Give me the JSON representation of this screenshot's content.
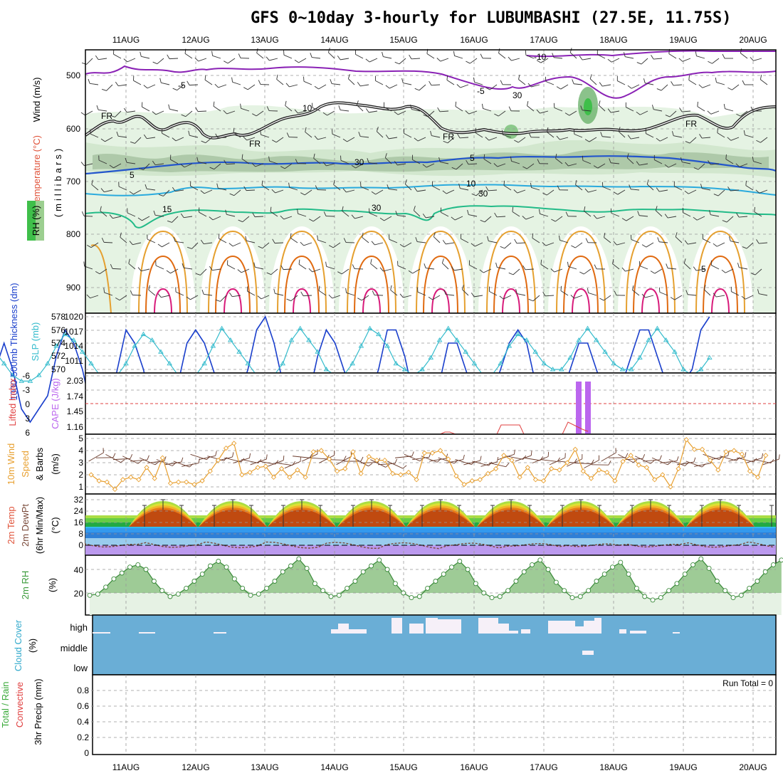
{
  "title": "GFS 0~10day 3-hourly for LUBUMBASHI (27.5E, 11.75S)",
  "dates": [
    "11AUG",
    "12AUG",
    "13AUG",
    "14AUG",
    "15AUG",
    "16AUG",
    "17AUG",
    "18AUG",
    "19AUG",
    "20AUG"
  ],
  "colors": {
    "frame": "#000000",
    "grid": "#999999",
    "purple": "#8a22b5",
    "blue": "#2255cc",
    "cyan": "#2aaadd",
    "green": "#22bb88",
    "orange": "#e59a2a",
    "darkorange": "#e06a10",
    "magenta": "#d81a7a",
    "thickness": "#1a3fcc",
    "slp": "#33bbcc",
    "cape": "#bb66ee",
    "windspeed": "#e8a030",
    "cloud": "#6aaed6"
  },
  "panel1": {
    "ylabel_wind": "Wind (m/s)",
    "ylabel_temp": "Temperature (°C)",
    "ylabel_mb": "(millibars)",
    "ylabel_rh": "RH (%)",
    "yticks": [
      "500",
      "600",
      "700",
      "800",
      "900"
    ],
    "labels": {
      "minus10": "-10",
      "minus5a": "-5",
      "minus5b": "-5",
      "fr1": "FR",
      "fr2": "FR",
      "fr3": "FR",
      "fr4": "FR",
      "p5a": "5",
      "p5b": "5",
      "p10": "10",
      "p15": "15",
      "p5c": "5",
      "rh30a": "30",
      "rh30b": "30",
      "rh30c": "30",
      "rh30d": "30",
      "rh10": "10"
    }
  },
  "panel2": {
    "ylabel_thk": "1000-500mb Thickness (dm)",
    "ylabel_slp": "SLP (mb)",
    "left_ticks": [
      "578",
      "576",
      "574",
      "572",
      "570"
    ],
    "right_ticks": [
      "1020",
      "1017",
      "1014",
      "1011"
    ]
  },
  "panel3": {
    "ylabel_li": "Lifted Index",
    "ylabel_cape": "CAPE (J/kg)",
    "left_ticks": [
      "-6",
      "-3",
      "0",
      "3",
      "6"
    ],
    "right_ticks": [
      "2.03",
      "1.74",
      "1.45",
      "1.16"
    ]
  },
  "panel4": {
    "ylabel1": "10m Wind",
    "ylabel2": "Speed",
    "ylabel3": "& Barbs",
    "ylabel4": "(m/s)",
    "yticks": [
      "5",
      "4",
      "3",
      "2",
      "1"
    ]
  },
  "panel5": {
    "ylabel1": "2m Temp",
    "ylabel2": "2m DewPt",
    "ylabel3": "(6hr Min/Max)",
    "ylabel4": "(°C)",
    "yticks": [
      "32",
      "24",
      "16",
      "8",
      "0"
    ]
  },
  "panel6": {
    "ylabel1": "2m RH",
    "ylabel2": "(%)",
    "yticks": [
      "40",
      "20"
    ]
  },
  "panel7": {
    "ylabel1": "Cloud Cover",
    "ylabel2": "(%)",
    "levels": [
      "high",
      "middle",
      "low"
    ]
  },
  "panel8": {
    "ylabel1": "Total / Rain",
    "ylabel2": "Convective",
    "ylabel3": "3hr Precip (mm)",
    "yticks": [
      "0.8",
      "0.6",
      "0.4",
      "0.2",
      "0"
    ],
    "run_total": "Run Total = 0"
  },
  "chart_data": [
    {
      "type": "line",
      "title": "1000-500mb Thickness / SLP",
      "series": [
        {
          "name": "1000-500mb Thickness (dm)",
          "values": [
            574,
            574,
            576,
            574,
            571,
            570,
            571,
            572,
            575,
            577,
            576,
            574,
            571,
            570,
            571,
            574,
            577,
            576,
            574,
            571,
            570,
            571,
            573,
            576,
            577,
            576,
            574,
            572,
            571,
            572,
            574,
            577,
            578,
            576,
            573,
            571,
            571,
            572,
            575,
            577,
            576,
            574,
            572,
            571,
            572,
            574,
            577,
            577,
            575,
            572,
            571,
            571,
            573,
            576,
            576,
            574,
            572,
            571,
            572,
            574,
            576,
            577,
            576,
            573,
            570,
            570,
            572,
            574,
            576,
            576,
            574,
            572,
            572,
            573,
            575,
            577,
            577,
            575,
            573,
            572,
            573,
            574,
            577,
            578
          ]
        },
        {
          "name": "SLP (mb)",
          "values": [
            1014,
            1014,
            1012,
            1010,
            1009,
            1009,
            1010,
            1012,
            1015,
            1017,
            1016,
            1014,
            1012,
            1010,
            1009,
            1010,
            1012,
            1015,
            1017,
            1016,
            1014,
            1012,
            1010,
            1009,
            1010,
            1012,
            1015,
            1018,
            1016,
            1014,
            1012,
            1010,
            1009,
            1010,
            1012,
            1016,
            1018,
            1016,
            1014,
            1011,
            1010,
            1010,
            1012,
            1015,
            1018,
            1017,
            1015,
            1012,
            1011,
            1010,
            1011,
            1013,
            1016,
            1018,
            1016,
            1014,
            1012,
            1010,
            1010,
            1012,
            1015,
            1017,
            1016,
            1014,
            1012,
            1011,
            1011,
            1013,
            1016,
            1018,
            1016,
            1014,
            1012,
            1011,
            1011,
            1013,
            1016,
            1018,
            1016,
            1014,
            1011,
            1010,
            1011,
            1013
          ]
        }
      ]
    },
    {
      "type": "bar",
      "title": "CAPE (J/kg)",
      "categories": [
        "17AUG 12Z",
        "17AUG 15Z"
      ],
      "values": [
        2.03,
        2.03
      ]
    },
    {
      "type": "line",
      "title": "10m Wind Speed (m/s)",
      "series": [
        {
          "name": "10m Wind Speed",
          "values": [
            2.0,
            1.5,
            1.4,
            0.8,
            1.6,
            1.8,
            1.6,
            2.6,
            1.7,
            3.4,
            1.3,
            1.4,
            1.4,
            1.2,
            1.5,
            2.3,
            3.2,
            4.2,
            4.6,
            2.0,
            2.2,
            2.6,
            2.7,
            1.8,
            2.5,
            1.8,
            2.4,
            1.8,
            3.9,
            4.0,
            3.3,
            2.3,
            2.5,
            3.9,
            2.1,
            3.5,
            3.2,
            3.2,
            2.1,
            2.0,
            2.2,
            1.6,
            3.8,
            3.8,
            4.0,
            3.3,
            1.9,
            1.2,
            1.5,
            1.6,
            2.1,
            2.5,
            3.6,
            3.2,
            1.8,
            2.6,
            1.6,
            1.5,
            2.5,
            2.4,
            3.0,
            4.1,
            2.3,
            1.7,
            2.4,
            2.2,
            1.5,
            3.1,
            3.6,
            2.8,
            2.6,
            1.6,
            2.0,
            1.0,
            2.5,
            4.9,
            4.1,
            4.1,
            3.2,
            2.4,
            3.9,
            4.0,
            3.7,
            2.3,
            1.8,
            3.6
          ]
        }
      ]
    },
    {
      "type": "line",
      "title": "2m RH (%)",
      "series": [
        {
          "name": "2m RH",
          "values": [
            18,
            19,
            25,
            32,
            37,
            42,
            44,
            40,
            30,
            22,
            17,
            19,
            24,
            30,
            36,
            43,
            47,
            42,
            32,
            24,
            18,
            19,
            24,
            30,
            38,
            43,
            49,
            41,
            28,
            22,
            17,
            18,
            24,
            30,
            38,
            43,
            48,
            40,
            28,
            20,
            16,
            17,
            24,
            30,
            36,
            42,
            47,
            40,
            28,
            20,
            16,
            17,
            22,
            30,
            38,
            44,
            48,
            40,
            29,
            22,
            16,
            17,
            22,
            30,
            36,
            42,
            46,
            36,
            24,
            17,
            14,
            16,
            22,
            28,
            36,
            44,
            49,
            41,
            30,
            22,
            16,
            18,
            24,
            30,
            38,
            44,
            48
          ]
        }
      ]
    }
  ]
}
